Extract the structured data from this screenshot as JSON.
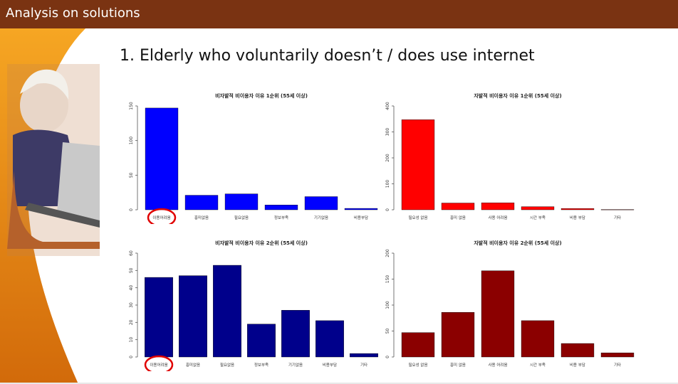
{
  "header": {
    "title": "Analysis on solutions"
  },
  "slide": {
    "heading": "1. Elderly who voluntarily doesn’t / does use internet"
  },
  "colors": {
    "header_bar": "#7a3312",
    "chart1": "#0000ff",
    "chart2": "#ff0000",
    "chart3": "#00008b",
    "chart4": "#8b0000",
    "highlight_circle": "#e00000"
  },
  "chart_data": [
    {
      "type": "bar",
      "title": "비자발적 비이용자 이유 1순위 (55세 이상)",
      "categories": [
        "이용어려움",
        "흥미없음",
        "필요없음",
        "정보부족",
        "기기없음",
        "비용부담"
      ],
      "values": [
        147,
        21,
        23,
        7,
        19,
        2
      ],
      "yticks": [
        "0",
        "50",
        "100",
        "150"
      ],
      "ylim": [
        0,
        150
      ],
      "highlight_index": 0
    },
    {
      "type": "bar",
      "title": "자발적 비이용자 이유 1순위 (55세 이상)",
      "categories": [
        "필요성 없음",
        "흥미 없음",
        "사용 어려움",
        "시간 부족",
        "비용 부담",
        "기타"
      ],
      "values": [
        347,
        26,
        27,
        12,
        5,
        1
      ],
      "yticks": [
        "0",
        "100",
        "200",
        "300",
        "400"
      ],
      "ylim": [
        0,
        400
      ]
    },
    {
      "type": "bar",
      "title": "비자발적 비이용자 이유 2순위 (55세 이상)",
      "categories": [
        "이용어려움",
        "흥미없음",
        "필요없음",
        "정보부족",
        "기기없음",
        "비용부담",
        "기타"
      ],
      "values": [
        46,
        47,
        53,
        19,
        27,
        21,
        2
      ],
      "yticks": [
        "0",
        "10",
        "20",
        "30",
        "40",
        "50",
        "60"
      ],
      "ylim": [
        0,
        60
      ],
      "highlight_index": 0
    },
    {
      "type": "bar",
      "title": "자발적 비이용자 이유 2순위 (55세 이상)",
      "categories": [
        "필요성 없음",
        "흥미 없음",
        "사용 어려움",
        "시간 부족",
        "비용 부담",
        "기타"
      ],
      "values": [
        47,
        86,
        166,
        70,
        26,
        8
      ],
      "yticks": [
        "0",
        "50",
        "100",
        "150",
        "200"
      ],
      "ylim": [
        0,
        200
      ]
    }
  ]
}
